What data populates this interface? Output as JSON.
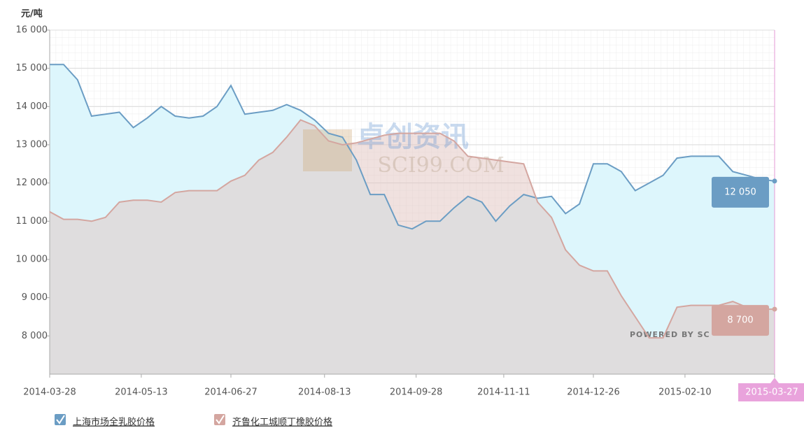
{
  "chart_data": {
    "type": "line",
    "y_label": "元/吨",
    "x": [
      "2014-03-28",
      "2014-04-04",
      "2014-04-11",
      "2014-04-18",
      "2014-04-25",
      "2014-05-02",
      "2014-05-09",
      "2014-05-16",
      "2014-05-23",
      "2014-05-30",
      "2014-06-06",
      "2014-06-13",
      "2014-06-20",
      "2014-06-27",
      "2014-07-04",
      "2014-07-11",
      "2014-07-18",
      "2014-07-25",
      "2014-08-01",
      "2014-08-08",
      "2014-08-15",
      "2014-08-22",
      "2014-08-29",
      "2014-09-05",
      "2014-09-12",
      "2014-09-19",
      "2014-09-26",
      "2014-10-03",
      "2014-10-10",
      "2014-10-17",
      "2014-10-24",
      "2014-10-31",
      "2014-11-07",
      "2014-11-14",
      "2014-11-21",
      "2014-11-28",
      "2014-12-05",
      "2014-12-12",
      "2014-12-19",
      "2014-12-26",
      "2015-01-02",
      "2015-01-09",
      "2015-01-16",
      "2015-01-23",
      "2015-01-30",
      "2015-02-06",
      "2015-02-13",
      "2015-02-20",
      "2015-02-27",
      "2015-03-06",
      "2015-03-13",
      "2015-03-20",
      "2015-03-27"
    ],
    "series": [
      {
        "name": "上海市场全乳胶价格",
        "color": "#6b9dc4",
        "fill": "#ddf6fc",
        "values": [
          15100,
          15100,
          14700,
          13750,
          13800,
          13850,
          13450,
          13700,
          14000,
          13750,
          13700,
          13750,
          14000,
          14550,
          13800,
          13850,
          13900,
          14050,
          13900,
          13650,
          13300,
          13200,
          12600,
          11700,
          11700,
          10900,
          10800,
          11000,
          11000,
          11350,
          11650,
          11500,
          11000,
          11400,
          11700,
          11600,
          11650,
          11200,
          11450,
          12500,
          12500,
          12300,
          11800,
          12000,
          12200,
          12650,
          12700,
          12700,
          12700,
          12300,
          12200,
          12100,
          12050
        ],
        "value_labels": [
          null,
          null,
          null,
          null,
          null,
          null,
          null,
          null,
          null,
          null,
          null,
          null,
          null,
          null,
          null,
          null,
          null,
          null,
          null,
          null,
          null,
          null,
          null,
          null,
          null,
          null,
          null,
          null,
          null,
          null,
          null,
          null,
          null,
          null,
          null,
          null,
          null,
          null,
          null,
          null,
          null,
          null,
          null,
          null,
          null,
          null,
          null,
          null,
          null,
          null,
          null,
          null,
          "12 050"
        ]
      },
      {
        "name": "齐鲁化工城顺丁橡胶价格",
        "color": "#d4a6a0",
        "fill": "rgba(226,196,192,0.5)",
        "values": [
          11250,
          11050,
          11050,
          11000,
          11100,
          11500,
          11550,
          11550,
          11500,
          11750,
          11800,
          11800,
          11800,
          12050,
          12200,
          12600,
          12800,
          13200,
          13650,
          13500,
          13100,
          13000,
          13050,
          13150,
          13250,
          13300,
          13300,
          13300,
          13300,
          13100,
          12700,
          12650,
          12600,
          12550,
          12500,
          11500,
          11100,
          10250,
          9850,
          9700,
          9700,
          9050,
          8500,
          7950,
          7950,
          8750,
          8800,
          8800,
          8800,
          8900,
          8750,
          8700,
          8700
        ],
        "value_labels": [
          null,
          null,
          null,
          null,
          null,
          null,
          null,
          null,
          null,
          null,
          null,
          null,
          null,
          null,
          null,
          null,
          null,
          null,
          null,
          null,
          null,
          null,
          null,
          null,
          null,
          null,
          null,
          null,
          null,
          null,
          null,
          null,
          null,
          null,
          null,
          null,
          null,
          null,
          null,
          null,
          null,
          null,
          null,
          null,
          null,
          null,
          null,
          null,
          null,
          null,
          null,
          null,
          "8 700"
        ]
      }
    ],
    "xlim": [
      "2014-03-28",
      "2015-03-27"
    ],
    "xticks": [
      "2014-03-28",
      "2014-05-13",
      "2014-06-27",
      "2014-08-13",
      "2014-09-28",
      "2014-11-11",
      "2014-12-26",
      "2015-02-10",
      "2015-03-27"
    ],
    "ylim": [
      7000,
      16000
    ],
    "yticks": [
      {
        "value": 8000,
        "label": "8 000"
      },
      {
        "value": 9000,
        "label": "9 000"
      },
      {
        "value": 10000,
        "label": "10 000"
      },
      {
        "value": 11000,
        "label": "11 000"
      },
      {
        "value": 12000,
        "label": "12 000"
      },
      {
        "value": 13000,
        "label": "13 000"
      },
      {
        "value": 14000,
        "label": "14 000"
      },
      {
        "value": 15000,
        "label": "15 000"
      },
      {
        "value": 16000,
        "label": "16 000"
      }
    ],
    "grid": true,
    "legend": "bottom-left",
    "watermark": [
      "卓创资讯",
      "SCI99.COM"
    ],
    "credit": "POWERED BY SC"
  }
}
